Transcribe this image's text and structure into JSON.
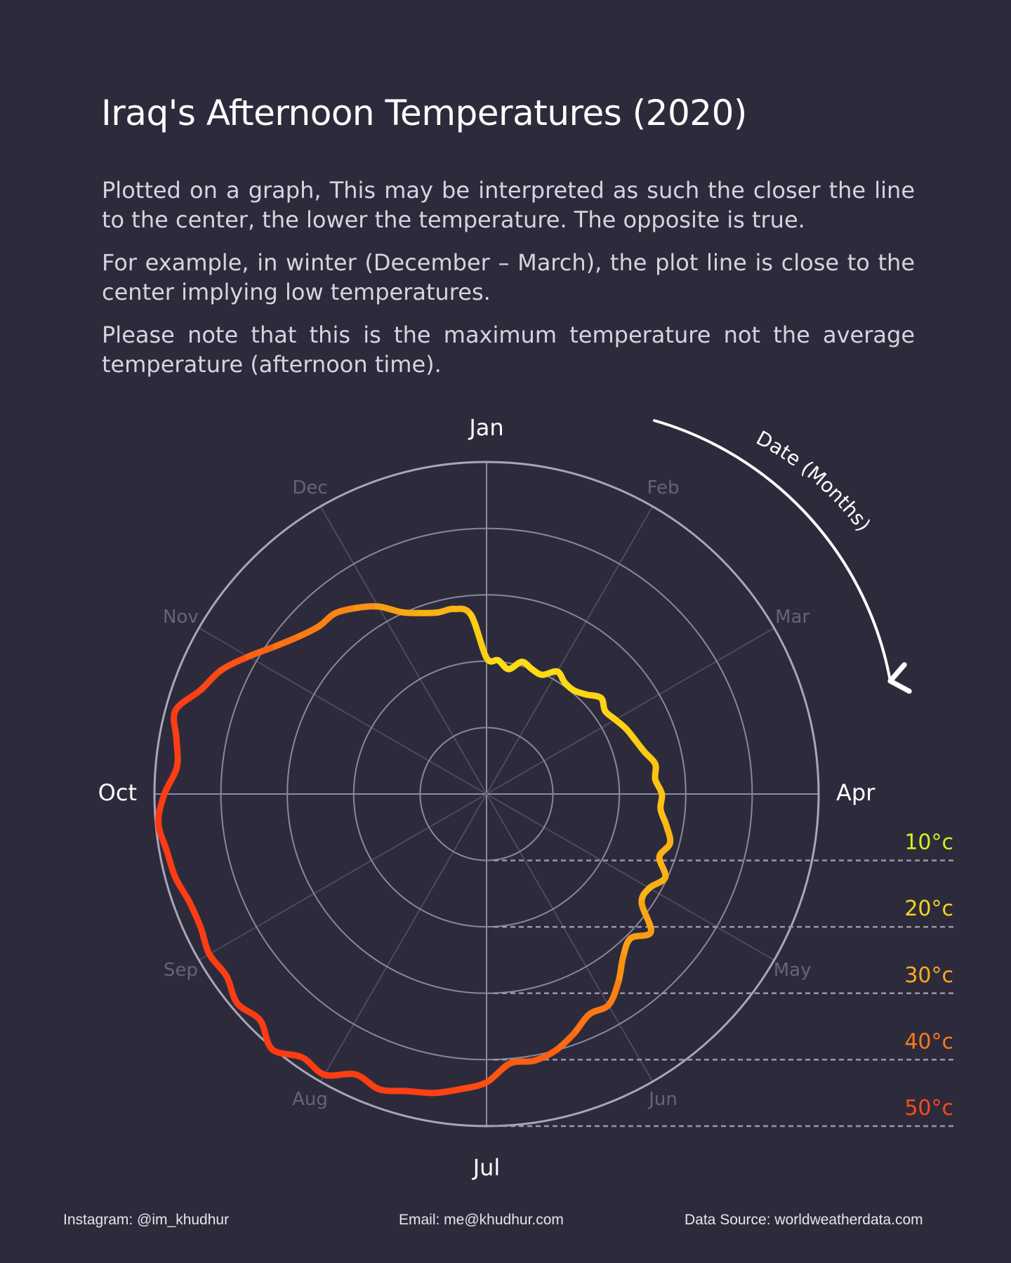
{
  "title": "Iraq's Afternoon Temperatures (2020)",
  "paragraphs": [
    "Plotted on a graph, This may be interpreted as such the closer the line to the center, the lower the temperature. The opposite is true.",
    "For example, in winter (December – March), the plot line is close to the center implying low temperatures.",
    "Please note that this is the maximum temperature not the average temperature (afternoon time)."
  ],
  "footer": {
    "instagram": "Instagram: @im_khudhur",
    "email": "Email: me@khudhur.com",
    "source": "Data Source: worldweatherdata.com"
  },
  "chart_data": {
    "type": "line",
    "polar": true,
    "direction": "clockwise",
    "start_month": "Jan",
    "arrow_label": "Date (Months)",
    "months": [
      "Jan",
      "Feb",
      "Mar",
      "Apr",
      "May",
      "Jun",
      "Jul",
      "Aug",
      "Sep",
      "Oct",
      "Nov",
      "Dec"
    ],
    "major_months": [
      "Jan",
      "Apr",
      "Jul",
      "Oct"
    ],
    "radial_ticks": [
      10,
      20,
      30,
      40,
      50
    ],
    "radial_tick_labels": [
      "10°c",
      "20°c",
      "30°c",
      "40°c",
      "50°c"
    ],
    "radial_tick_colors": [
      "#d7f11c",
      "#f7d51d",
      "#fbaa1f",
      "#fb7a1b",
      "#fb4a1a"
    ],
    "r_range": [
      0,
      50
    ],
    "unit": "°C",
    "series": [
      {
        "values": [
          20.5,
          20.2,
          19.1,
          20.6,
          20.0,
          19.8,
          21.3,
          20.5,
          20.4,
          21.2,
          22.5,
          21.8,
          22.4,
          23.2,
          23.8,
          24.6,
          25.8,
          25.5,
          26.4,
          26.3,
          27.5,
          28.6,
          27.7,
          29.7,
          28.3,
          28.5,
          32.3,
          30.7,
          32.0,
          34.6,
          36.7,
          36.6,
          38.4,
          40.0,
          40.8,
          40.7,
          43.4,
          44.6,
          45.7,
          46.3,
          47.3,
          46.6,
          48.8,
          48.4,
          50.2,
          48.2,
          49.0,
          47.8,
          48.2,
          47.5,
          47.6,
          48.5,
          48.9,
          49.6,
          48.5,
          46.8,
          47.4,
          48.5,
          45.8,
          44.1,
          41.4,
          38.8,
          36.9,
          35.7,
          35.5,
          34.2,
          32.6,
          30.2,
          29.0,
          28.3,
          28.3,
          27.1
        ]
      }
    ],
    "gradient_stops": [
      {
        "value": 20,
        "color": "#fcdd14"
      },
      {
        "value": 26,
        "color": "#fcc314"
      },
      {
        "value": 32,
        "color": "#fb9a14"
      },
      {
        "value": 40,
        "color": "#fc6214"
      },
      {
        "value": 46,
        "color": "#fc3f14"
      },
      {
        "value": 50,
        "color": "#fc3a14"
      }
    ],
    "grid": true
  }
}
